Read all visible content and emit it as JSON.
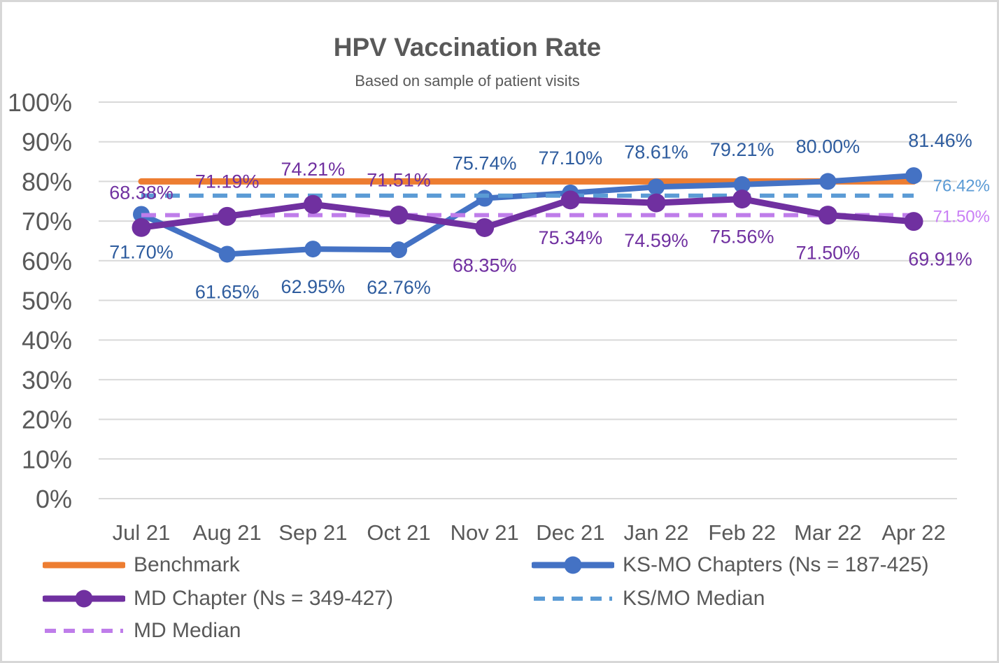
{
  "chart_data": {
    "type": "line",
    "title": "HPV Vaccination Rate",
    "subtitle": "Based on sample of patient visits",
    "categories": [
      "Jul 21",
      "Aug 21",
      "Sep 21",
      "Oct 21",
      "Nov 21",
      "Dec 21",
      "Jan 22",
      "Feb 22",
      "Mar 22",
      "Apr 22"
    ],
    "y_axis": {
      "min": 0,
      "max": 100,
      "step": 10,
      "tick_suffix": "%"
    },
    "grid": true,
    "grid_color": "#d9d9d9",
    "text_color": "#595959",
    "background": "#ffffff",
    "legend_position": "bottom-two-columns",
    "series": [
      {
        "id": "benchmark",
        "name": "Benchmark",
        "type": "solid",
        "color": "#ed7d31",
        "width": 9,
        "constant_value": 80,
        "show_markers": false,
        "show_labels": false
      },
      {
        "id": "ks-mo-chapters",
        "name": "KS-MO Chapters (Ns = 187-425)",
        "type": "solid",
        "color": "#4472c4",
        "label_color": "#2e5c9e",
        "width": 8,
        "marker_radius": 12,
        "show_markers": true,
        "show_labels": true,
        "values": [
          71.7,
          61.65,
          62.95,
          62.76,
          75.74,
          77.1,
          78.61,
          79.21,
          80.0,
          81.46
        ],
        "label_placement": [
          "below",
          "below",
          "below",
          "below",
          "above",
          "above",
          "above",
          "above",
          "above",
          "above"
        ]
      },
      {
        "id": "ks-mo-median",
        "name": "KS/MO Median",
        "type": "dashed",
        "color": "#5b9bd5",
        "label_color": "#5b9bd5",
        "width": 6,
        "constant_value": 76.42,
        "show_markers": false,
        "show_labels": false,
        "right_label": "76.42%"
      },
      {
        "id": "md-median",
        "name": "MD Median",
        "type": "dashed",
        "color": "#bf7dea",
        "label_color": "#c97ff5",
        "width": 6,
        "constant_value": 71.5,
        "show_markers": false,
        "show_labels": false,
        "right_label": "71.50%"
      },
      {
        "id": "md-chapter",
        "name": "MD Chapter (Ns = 349-427)",
        "type": "solid",
        "color": "#7030a0",
        "label_color": "#7030a0",
        "width": 9,
        "marker_radius": 13.5,
        "show_markers": true,
        "show_labels": true,
        "values": [
          68.38,
          71.19,
          74.21,
          71.51,
          68.35,
          75.34,
          74.59,
          75.56,
          71.5,
          69.91
        ],
        "label_placement": [
          "above",
          "above",
          "above",
          "above",
          "below",
          "below",
          "below",
          "below",
          "below",
          "below"
        ]
      }
    ]
  }
}
